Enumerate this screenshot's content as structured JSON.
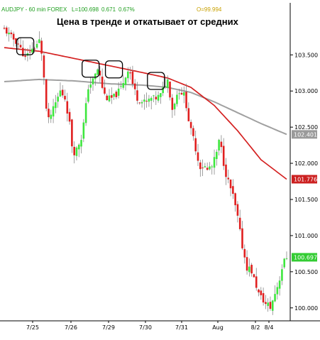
{
  "header": {
    "symbol": "AUDJPY - 60 min  FOREX",
    "last": "L=100.698",
    "change": "0.671",
    "change_pct": "0.67%",
    "open": "O=99.994"
  },
  "chart_data": {
    "type": "candlestick",
    "title": "Цена в тренде и откатывает от средних",
    "xlabel": "",
    "ylabel": "",
    "ylim": [
      99.87,
      104.2
    ],
    "y_ticks": [
      "103.500",
      "103.000",
      "102.500",
      "102.000",
      "101.500",
      "101.000",
      "100.500",
      "100.000"
    ],
    "x_ticks": [
      "7/25",
      "7/26",
      "7/29",
      "7/30",
      "7/31",
      "Aug",
      "8/2",
      "8/4"
    ],
    "grid": false,
    "legend": "none",
    "price_path": [
      [
        0,
        103.85
      ],
      [
        3,
        103.75
      ],
      [
        6,
        103.65
      ],
      [
        9,
        103.45
      ],
      [
        11,
        103.55
      ],
      [
        13,
        103.6
      ],
      [
        15,
        103.7
      ],
      [
        16,
        103.5
      ],
      [
        17,
        103.2
      ],
      [
        18,
        102.75
      ],
      [
        19,
        102.6
      ],
      [
        21,
        102.75
      ],
      [
        24,
        103.0
      ],
      [
        26,
        102.9
      ],
      [
        28,
        102.55
      ],
      [
        29,
        102.25
      ],
      [
        30,
        102.15
      ],
      [
        31,
        102.2
      ],
      [
        33,
        102.35
      ],
      [
        34,
        102.55
      ],
      [
        35,
        102.8
      ],
      [
        36,
        103.05
      ],
      [
        38,
        103.15
      ],
      [
        40,
        103.3
      ],
      [
        41,
        103.2
      ],
      [
        42,
        103.05
      ],
      [
        43,
        102.95
      ],
      [
        44,
        102.9
      ],
      [
        46,
        102.9
      ],
      [
        48,
        102.95
      ],
      [
        50,
        103.05
      ],
      [
        52,
        103.2
      ],
      [
        53,
        103.3
      ],
      [
        54,
        103.25
      ],
      [
        55,
        103.1
      ],
      [
        57,
        102.9
      ],
      [
        59,
        102.85
      ],
      [
        61,
        102.85
      ],
      [
        63,
        102.9
      ],
      [
        65,
        102.9
      ],
      [
        67,
        102.95
      ],
      [
        69,
        103.1
      ],
      [
        70,
        103.15
      ],
      [
        71,
        102.95
      ],
      [
        72,
        102.75
      ],
      [
        73,
        102.85
      ],
      [
        74,
        102.95
      ],
      [
        75,
        103.0
      ],
      [
        77,
        102.95
      ],
      [
        78,
        102.8
      ],
      [
        79,
        102.6
      ],
      [
        80,
        102.45
      ],
      [
        81,
        102.35
      ],
      [
        82,
        102.2
      ],
      [
        83,
        102.05
      ],
      [
        84,
        101.95
      ],
      [
        85,
        101.95
      ],
      [
        86,
        101.95
      ],
      [
        87,
        101.9
      ],
      [
        88,
        101.95
      ],
      [
        89,
        101.95
      ],
      [
        90,
        102.05
      ],
      [
        91,
        102.15
      ],
      [
        92,
        102.3
      ],
      [
        93,
        102.2
      ],
      [
        94,
        102.0
      ],
      [
        95,
        101.85
      ],
      [
        96,
        101.75
      ],
      [
        97,
        101.65
      ],
      [
        98,
        101.55
      ],
      [
        99,
        101.4
      ],
      [
        100,
        101.25
      ],
      [
        101,
        101.05
      ],
      [
        102,
        100.85
      ],
      [
        103,
        100.7
      ],
      [
        104,
        100.55
      ],
      [
        105,
        100.55
      ],
      [
        106,
        100.5
      ],
      [
        107,
        100.4
      ],
      [
        108,
        100.3
      ],
      [
        109,
        100.2
      ],
      [
        110,
        100.15
      ],
      [
        111,
        100.1
      ],
      [
        112,
        100.05
      ],
      [
        113,
        100.05
      ],
      [
        114,
        100.0
      ],
      [
        115,
        100.1
      ],
      [
        116,
        100.2
      ],
      [
        117,
        100.3
      ],
      [
        118,
        100.4
      ],
      [
        119,
        100.55
      ],
      [
        120,
        100.65
      ],
      [
        121,
        100.7
      ]
    ],
    "ma_gray": {
      "label": "102.401",
      "values": [
        [
          0,
          103.13
        ],
        [
          15,
          103.16
        ],
        [
          30,
          103.14
        ],
        [
          45,
          103.1
        ],
        [
          60,
          103.08
        ],
        [
          70,
          103.05
        ],
        [
          80,
          102.98
        ],
        [
          90,
          102.85
        ],
        [
          100,
          102.7
        ],
        [
          110,
          102.55
        ],
        [
          121,
          102.4
        ]
      ]
    },
    "ma_red": {
      "label": "101.776",
      "values": [
        [
          0,
          103.6
        ],
        [
          15,
          103.55
        ],
        [
          30,
          103.45
        ],
        [
          45,
          103.35
        ],
        [
          60,
          103.25
        ],
        [
          70,
          103.18
        ],
        [
          80,
          103.05
        ],
        [
          90,
          102.8
        ],
        [
          100,
          102.45
        ],
        [
          110,
          102.05
        ],
        [
          121,
          101.78
        ]
      ]
    },
    "last_tag": "100.697",
    "highlights": [
      [
        9,
        103.58
      ],
      [
        37,
        103.27
      ],
      [
        47,
        103.26
      ],
      [
        65,
        103.1
      ]
    ]
  },
  "colors": {
    "ma_red": "#d42020",
    "ma_gray": "#a0a0a0",
    "candle_up": "#3ee63e",
    "candle_down": "#e02020",
    "tag_gray": "#9a9a9a",
    "tag_red": "#cc2020",
    "tag_green": "#33cc33"
  }
}
